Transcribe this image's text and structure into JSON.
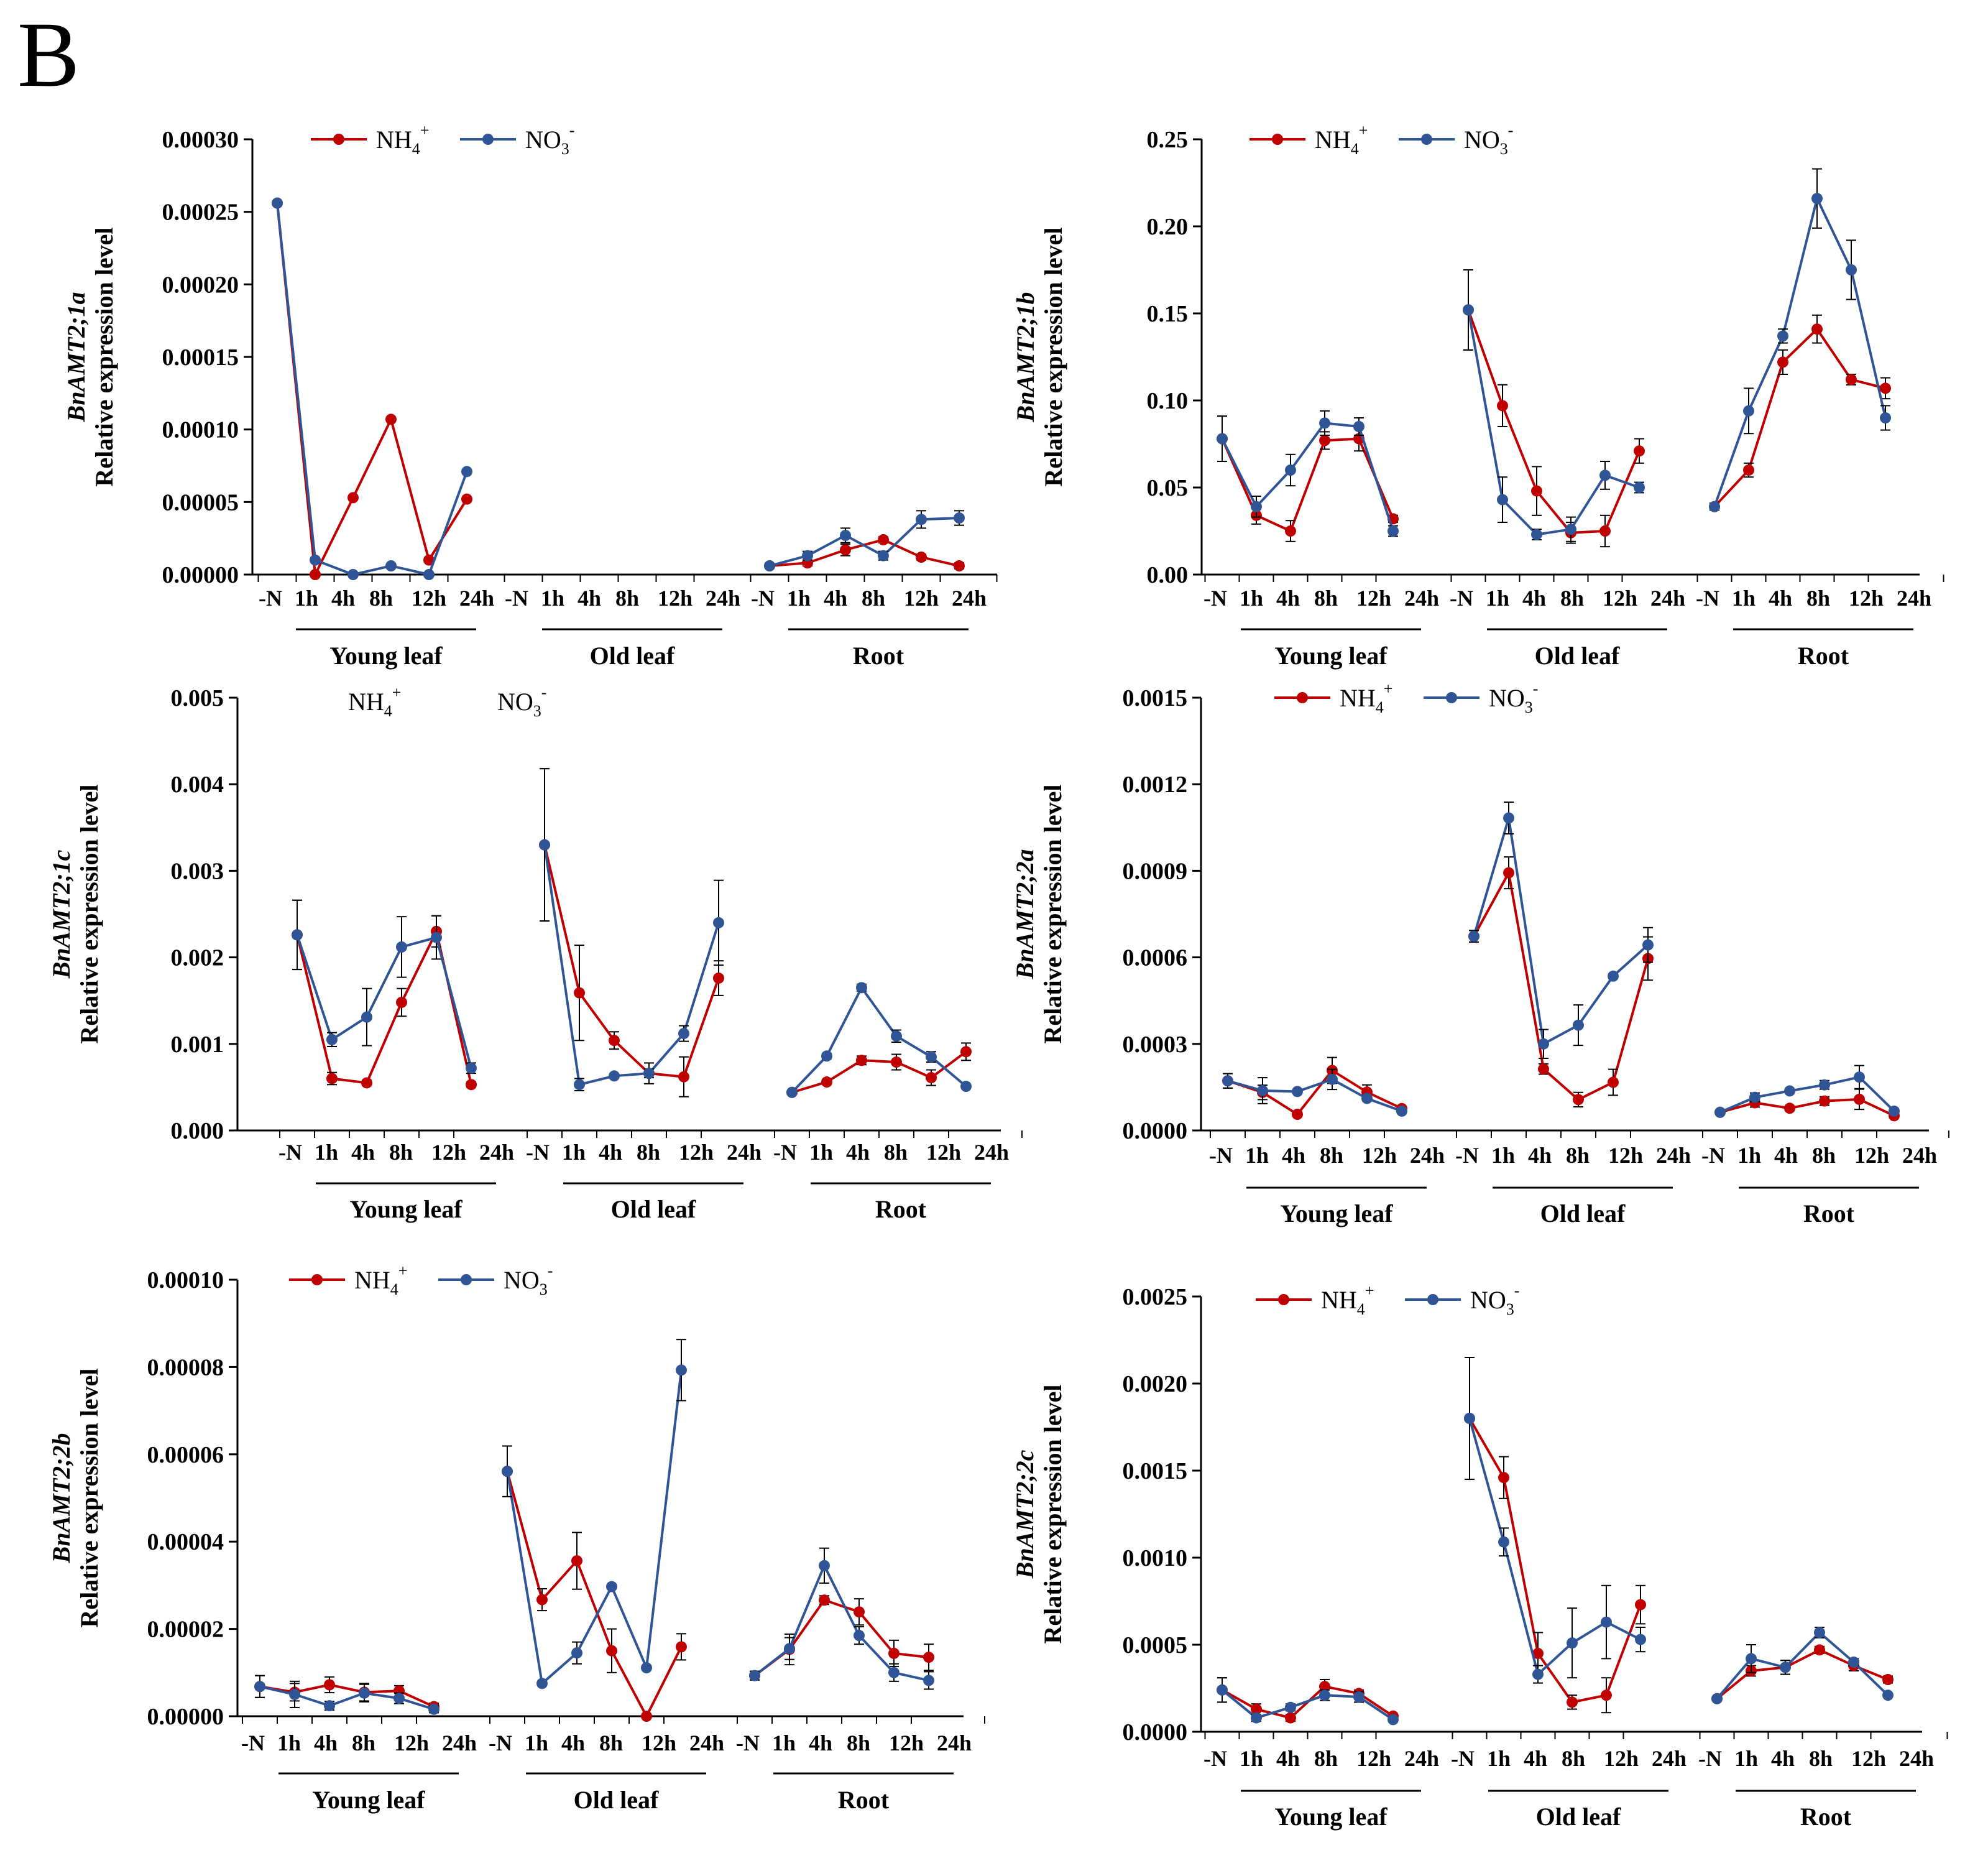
{
  "figure": {
    "panel_letter": "B",
    "colors": {
      "nh4": "#C00000",
      "no3": "#2F5597",
      "axis": "#000000"
    },
    "legend": {
      "nh4_base": "NH",
      "nh4_sub": "4",
      "nh4_sup": "+",
      "no3_base": "NO",
      "no3_sub": "3",
      "no3_sup": "-"
    },
    "ylabel": "Relative expression level",
    "group_labels": [
      "Young leaf",
      "Old leaf",
      "Root"
    ],
    "x_ticks": [
      "-N",
      "1h",
      "4h",
      "8h",
      "12h",
      "24h"
    ]
  },
  "chart_data": [
    {
      "type": "line",
      "gene": "BnAMT2;1a",
      "title": "",
      "ylim": [
        0,
        0.0003
      ],
      "yticks": [
        "0.00000",
        "0.00005",
        "0.00010",
        "0.00015",
        "0.00020",
        "0.00025",
        "0.00030"
      ],
      "legend": "inline-top",
      "series": [
        {
          "name": "NH4+",
          "groups": [
            [
              0.000256,
              0.0,
              5.3e-05,
              0.000107,
              1e-05,
              5.2e-05
            ],
            [
              null,
              null,
              null,
              null,
              null,
              null
            ],
            [
              6e-06,
              8e-06,
              1.7e-05,
              2.4e-05,
              1.2e-05,
              6e-06
            ]
          ],
          "errors": [
            [
              0,
              0,
              0,
              0,
              0,
              0
            ],
            [
              0,
              0,
              0,
              0,
              0,
              0
            ],
            [
              0,
              2e-06,
              4e-06,
              2e-06,
              2e-06,
              2e-06
            ]
          ]
        },
        {
          "name": "NO3-",
          "groups": [
            [
              0.000256,
              1e-05,
              0.0,
              6e-06,
              0.0,
              7.1e-05
            ],
            [
              null,
              null,
              null,
              null,
              null,
              null
            ],
            [
              6e-06,
              1.3e-05,
              2.7e-05,
              1.3e-05,
              3.8e-05,
              3.9e-05
            ]
          ],
          "errors": [
            [
              0,
              0,
              0,
              0,
              0,
              0
            ],
            [
              0,
              0,
              0,
              0,
              0,
              0
            ],
            [
              0,
              3e-06,
              5e-06,
              3e-06,
              6e-06,
              5e-06
            ]
          ]
        }
      ]
    },
    {
      "type": "line",
      "gene": "BnAMT2;1b",
      "title": "",
      "ylim": [
        0,
        0.25
      ],
      "yticks": [
        "0.00",
        "0.05",
        "0.10",
        "0.15",
        "0.20",
        "0.25"
      ],
      "legend": "inline-top",
      "series": [
        {
          "name": "NH4+",
          "groups": [
            [
              0.078,
              0.034,
              0.025,
              0.077,
              0.078,
              0.032
            ],
            [
              0.152,
              0.097,
              0.048,
              0.024,
              0.025,
              0.071
            ],
            [
              0.039,
              0.06,
              0.122,
              0.141,
              0.112,
              0.107
            ]
          ],
          "errors": [
            [
              0.013,
              0.005,
              0.006,
              0.005,
              0.007,
              0.002
            ],
            [
              0.023,
              0.012,
              0.014,
              0.006,
              0.009,
              0.007
            ],
            [
              0.002,
              0.004,
              0.007,
              0.008,
              0.003,
              0.006
            ]
          ]
        },
        {
          "name": "NO3-",
          "groups": [
            [
              0.078,
              0.039,
              0.06,
              0.087,
              0.085,
              0.025
            ],
            [
              0.152,
              0.043,
              0.023,
              0.026,
              0.057,
              0.05
            ],
            [
              0.039,
              0.094,
              0.137,
              0.216,
              0.175,
              0.09
            ]
          ],
          "errors": [
            [
              0.013,
              0.006,
              0.009,
              0.007,
              0.005,
              0.003
            ],
            [
              0.023,
              0.013,
              0.003,
              0.007,
              0.008,
              0.003
            ],
            [
              0.002,
              0.013,
              0.004,
              0.017,
              0.017,
              0.007
            ]
          ]
        }
      ]
    },
    {
      "type": "line",
      "gene": "BnAMT2;1c",
      "title": "",
      "ylim": [
        0,
        0.005
      ],
      "yticks": [
        "0.000",
        "0.001",
        "0.002",
        "0.003",
        "0.004",
        "0.005"
      ],
      "legend": "spaced-top",
      "series": [
        {
          "name": "NH4+",
          "groups": [
            [
              0.00226,
              0.0006,
              0.00055,
              0.00148,
              0.0023,
              0.00053
            ],
            [
              0.0033,
              0.00159,
              0.00104,
              0.00066,
              0.00062,
              0.00176
            ],
            [
              0.00044,
              0.00056,
              0.00081,
              0.00079,
              0.00061,
              0.00091
            ]
          ],
          "errors": [
            [
              0.0004,
              7e-05,
              3e-05,
              0.00016,
              0.00018,
              3e-05
            ],
            [
              0.00088,
              0.00055,
              0.0001,
              0.00012,
              0.00023,
              0.0002
            ],
            [
              2e-05,
              3e-05,
              5e-05,
              9e-05,
              9e-05,
              0.0001
            ]
          ]
        },
        {
          "name": "NO3-",
          "groups": [
            [
              0.00226,
              0.00105,
              0.00131,
              0.00212,
              0.00223,
              0.00072
            ],
            [
              0.0033,
              0.00053,
              0.00063,
              0.00066,
              0.00112,
              0.0024
            ],
            [
              0.00044,
              0.00086,
              0.00165,
              0.00109,
              0.00085,
              0.00051
            ]
          ],
          "errors": [
            [
              0.0004,
              8e-05,
              0.00033,
              0.00035,
              0.00025,
              6e-05
            ],
            [
              0.00088,
              7e-05,
              2e-05,
              5e-05,
              9e-05,
              0.00049
            ],
            [
              2e-05,
              3e-05,
              4e-05,
              7e-05,
              6e-05,
              2e-05
            ]
          ]
        }
      ]
    },
    {
      "type": "line",
      "gene": "BnAMT2;2a",
      "title": "",
      "ylim": [
        0,
        0.0015
      ],
      "yticks": [
        "0.0000",
        "0.0003",
        "0.0006",
        "0.0009",
        "0.0012",
        "0.0015"
      ],
      "legend": "inline-top",
      "series": [
        {
          "name": "NH4+",
          "groups": [
            [
              0.000172,
              0.000132,
              5.6e-05,
              0.000208,
              0.000133,
              7.6e-05
            ],
            [
              0.000673,
              0.000893,
              0.000213,
              0.000107,
              0.000167,
              0.000596
            ],
            [
              6.3e-05,
              9.6e-05,
              7.7e-05,
              0.000102,
              0.000108,
              5.1e-05
            ]
          ],
          "errors": [
            [
              2.5e-05,
              2.5e-05,
              5e-06,
              4.5e-05,
              2.5e-05,
              8e-06
            ],
            [
              2e-05,
              5.5e-05,
              1.8e-05,
              2.5e-05,
              4.5e-05,
              7.5e-05
            ],
            [
              5e-06,
              1.5e-05,
              8e-06,
              1.5e-05,
              3.5e-05,
              8e-06
            ]
          ]
        },
        {
          "name": "NO3-",
          "groups": [
            [
              0.000172,
              0.000138,
              0.000135,
              0.000177,
              0.000111,
              6.7e-05
            ],
            [
              0.000673,
              0.001083,
              0.0003,
              0.000365,
              0.000535,
              0.000643
            ],
            [
              6.3e-05,
              0.000115,
              0.000137,
              0.000158,
              0.000185,
              6.7e-05
            ]
          ],
          "errors": [
            [
              2.5e-05,
              4.5e-05,
              5e-06,
              3.5e-05,
              8e-06,
              8e-06
            ],
            [
              2e-05,
              5.5e-05,
              5e-05,
              7e-05,
              8e-06,
              6e-05
            ],
            [
              5e-06,
              1.5e-05,
              8e-06,
              1.5e-05,
              4e-05,
              8e-06
            ]
          ]
        }
      ]
    },
    {
      "type": "line",
      "gene": "BnAMT2;2b",
      "title": "",
      "ylim": [
        0,
        0.0001
      ],
      "yticks": [
        "0.00000",
        "0.00002",
        "0.00004",
        "0.00006",
        "0.00008",
        "0.00010"
      ],
      "legend": "inline-top",
      "series": [
        {
          "name": "NH4+",
          "groups": [
            [
              6.8e-06,
              5.5e-06,
              7.2e-06,
              5.5e-06,
              5.8e-06,
              2.2e-06
            ],
            [
              5.61e-05,
              2.67e-05,
              3.56e-05,
              1.5e-05,
              0.0,
              1.59e-05
            ],
            [
              9.3e-06,
              1.53e-05,
              2.66e-05,
              2.39e-05,
              1.44e-05,
              1.35e-05
            ]
          ],
          "errors": [
            [
              2.5e-06,
              2e-06,
              1.8e-06,
              2e-06,
              1.2e-06,
              8e-07
            ],
            [
              5.8e-06,
              2.5e-06,
              6.5e-06,
              5e-06,
              0.0,
              3e-06
            ],
            [
              1e-06,
              3.5e-06,
              1e-06,
              3e-06,
              3e-06,
              3e-06
            ]
          ]
        },
        {
          "name": "NO3-",
          "groups": [
            [
              6.8e-06,
              5e-06,
              2.4e-06,
              5.3e-06,
              4.1e-06,
              1.6e-06
            ],
            [
              5.61e-05,
              7.5e-06,
              1.45e-05,
              2.97e-05,
              1.11e-05,
              7.93e-05
            ],
            [
              9.3e-06,
              1.55e-05,
              3.45e-05,
              1.85e-05,
              1e-05,
              8.2e-06
            ]
          ],
          "errors": [
            [
              2.5e-06,
              3e-06,
              1e-06,
              2e-06,
              1.2e-06,
              8e-07
            ],
            [
              5.8e-06,
              5e-07,
              2.5e-06,
              5e-07,
              5e-07,
              7e-06
            ],
            [
              1e-06,
              2.5e-06,
              4e-06,
              2e-06,
              2e-06,
              2e-06
            ]
          ]
        }
      ]
    },
    {
      "type": "line",
      "gene": "BnAMT2;2c",
      "title": "",
      "ylim": [
        0,
        0.0025
      ],
      "yticks": [
        "0.0000",
        "0.0005",
        "0.0010",
        "0.0015",
        "0.0020",
        "0.0025"
      ],
      "legend": "inline-top",
      "series": [
        {
          "name": "NH4+",
          "groups": [
            [
              0.00024,
              0.00013,
              8e-05,
              0.00026,
              0.00022,
              9e-05
            ],
            [
              0.0018,
              0.00146,
              0.00045,
              0.00017,
              0.00021,
              0.00073
            ],
            [
              0.00019,
              0.00035,
              0.00037,
              0.00047,
              0.00038,
              0.0003
            ]
          ],
          "errors": [
            [
              7e-05,
              3e-05,
              2e-05,
              4e-05,
              2e-05,
              1e-05
            ],
            [
              0.00035,
              0.00012,
              0.00012,
              4e-05,
              0.0001,
              0.00011
            ],
            [
              1e-05,
              3e-05,
              4e-05,
              2e-05,
              3e-05,
              2e-05
            ]
          ]
        },
        {
          "name": "NO3-",
          "groups": [
            [
              0.00024,
              8e-05,
              0.00014,
              0.00021,
              0.0002,
              7e-05
            ],
            [
              0.0018,
              0.00109,
              0.00033,
              0.00051,
              0.00063,
              0.00053
            ],
            [
              0.00019,
              0.00042,
              0.00037,
              0.00057,
              0.0004,
              0.00021
            ]
          ],
          "errors": [
            [
              7e-05,
              2e-05,
              2e-05,
              3e-05,
              3e-05,
              1e-05
            ],
            [
              0.00035,
              8e-05,
              5e-05,
              0.0002,
              0.00021,
              7e-05
            ],
            [
              1e-05,
              8e-05,
              4e-05,
              3e-05,
              2e-05,
              1e-05
            ]
          ]
        }
      ]
    }
  ]
}
